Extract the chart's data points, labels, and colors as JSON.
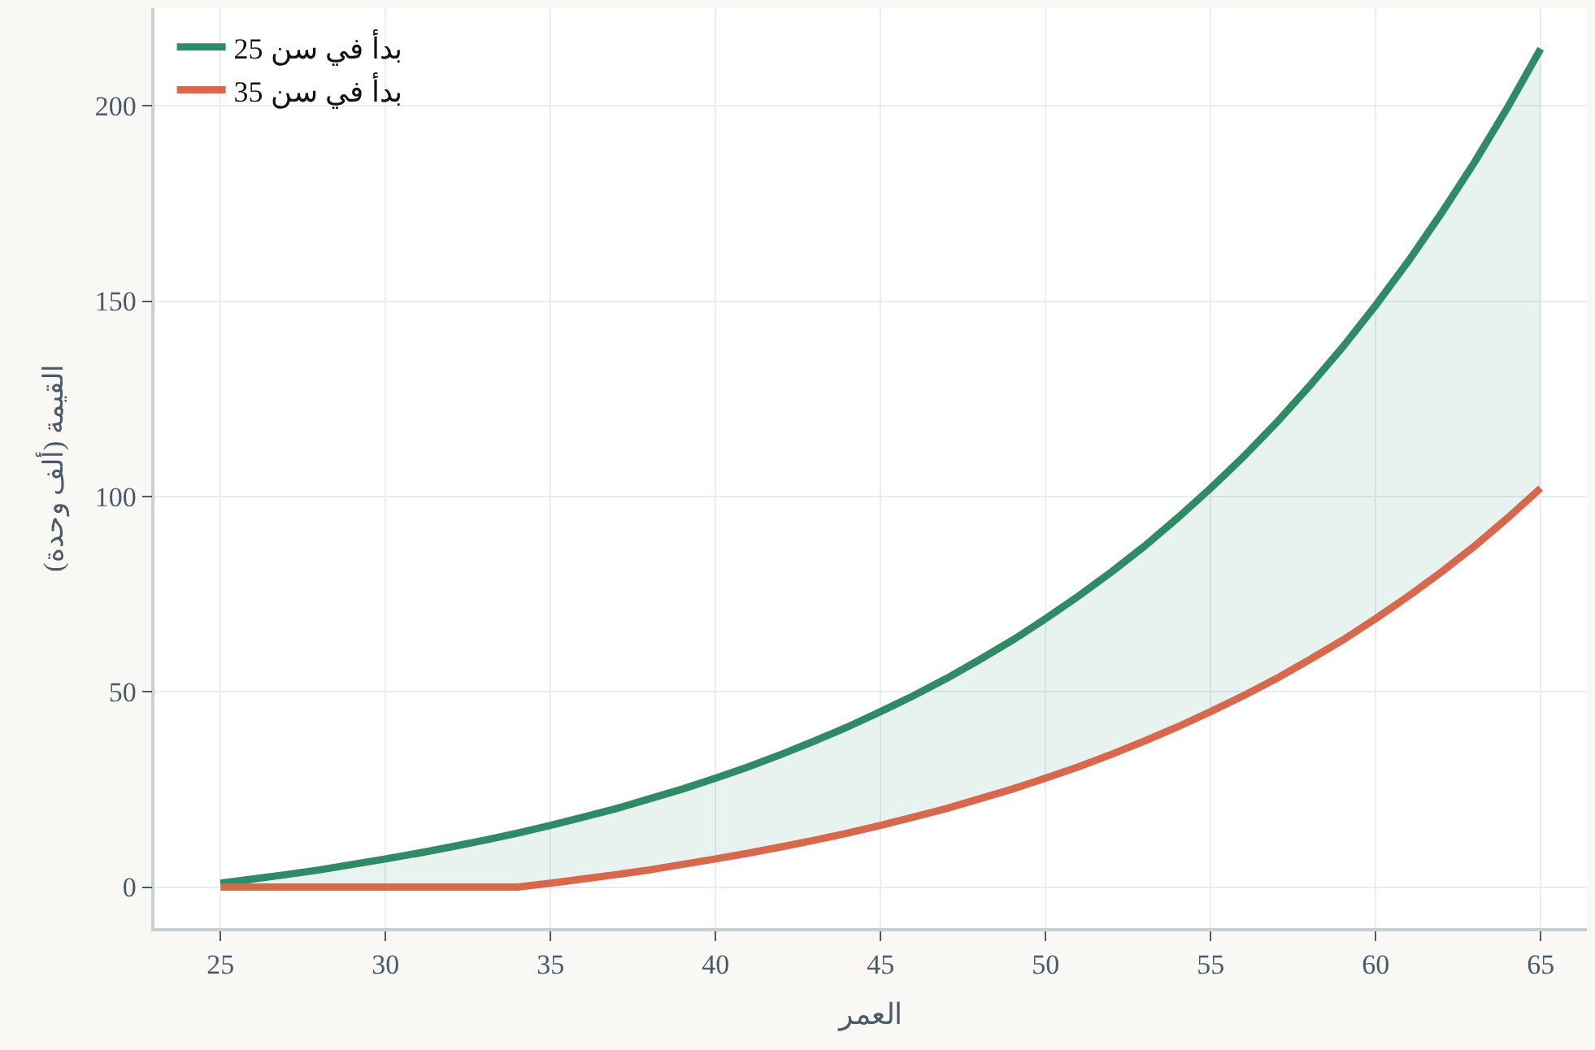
{
  "chart_data": {
    "type": "line",
    "xlabel": "العمر",
    "ylabel": "القيمة (ألف وحدة)",
    "x": [
      25,
      26,
      27,
      28,
      29,
      30,
      31,
      32,
      33,
      34,
      35,
      36,
      37,
      38,
      39,
      40,
      41,
      42,
      43,
      44,
      45,
      46,
      47,
      48,
      49,
      50,
      51,
      52,
      53,
      54,
      55,
      56,
      57,
      58,
      59,
      60,
      61,
      62,
      63,
      64,
      65
    ],
    "series": [
      {
        "name": "بدأ في سن 25",
        "color": "#2e8b66",
        "values": [
          1.0,
          2.1,
          3.2,
          4.4,
          5.8,
          7.2,
          8.7,
          10.3,
          12.0,
          13.8,
          15.8,
          17.9,
          20.1,
          22.6,
          25.1,
          27.9,
          30.8,
          34.0,
          37.4,
          41.0,
          44.9,
          49.0,
          53.4,
          58.2,
          63.2,
          68.7,
          74.5,
          80.7,
          87.3,
          94.5,
          102.1,
          110.2,
          118.9,
          128.3,
          138.2,
          148.9,
          160.3,
          172.6,
          185.6,
          199.6,
          214.6
        ],
        "lower": [
          0,
          0,
          0,
          0,
          0,
          0,
          0,
          0,
          0,
          0,
          1.0,
          2.1,
          3.2,
          4.4,
          5.8,
          7.2,
          8.7,
          10.3,
          12.0,
          13.8,
          15.8,
          17.9,
          20.1,
          22.6,
          25.1,
          27.9,
          30.8,
          34.0,
          37.4,
          41.0,
          44.9,
          49.0,
          53.4,
          58.2,
          63.2,
          68.7,
          74.5,
          80.7,
          87.3,
          94.5,
          102.1
        ],
        "upper": [
          1.0,
          2.1,
          3.2,
          4.4,
          5.8,
          7.2,
          8.7,
          10.3,
          12.0,
          13.8,
          15.8,
          17.9,
          20.1,
          22.6,
          25.1,
          27.9,
          30.8,
          34.0,
          37.4,
          41.0,
          44.9,
          49.0,
          53.4,
          58.2,
          63.2,
          68.7,
          74.5,
          80.7,
          87.3,
          94.5,
          102.1,
          110.2,
          118.9,
          128.3,
          138.2,
          148.9,
          160.3,
          172.6,
          185.6,
          199.6,
          214.6
        ]
      },
      {
        "name": "بدأ في سن 35",
        "color": "#d9674c",
        "values": [
          0,
          0,
          0,
          0,
          0,
          0,
          0,
          0,
          0,
          0,
          1.0,
          2.1,
          3.2,
          4.4,
          5.8,
          7.2,
          8.7,
          10.3,
          12.0,
          13.8,
          15.8,
          17.9,
          20.1,
          22.6,
          25.1,
          27.9,
          30.8,
          34.0,
          37.4,
          41.0,
          44.9,
          49.0,
          53.4,
          58.2,
          63.2,
          68.7,
          74.5,
          80.7,
          87.3,
          94.5,
          102.1
        ]
      }
    ],
    "xlim": [
      23,
      66.4
    ],
    "xticks": [
      25,
      30,
      35,
      40,
      45,
      50,
      55,
      60,
      65
    ],
    "ylim": [
      -10.5,
      225
    ],
    "yticks": [
      0,
      50,
      100,
      150,
      200
    ],
    "grid": true,
    "legend": "top left",
    "marker": "none",
    "line_style": "solid"
  }
}
